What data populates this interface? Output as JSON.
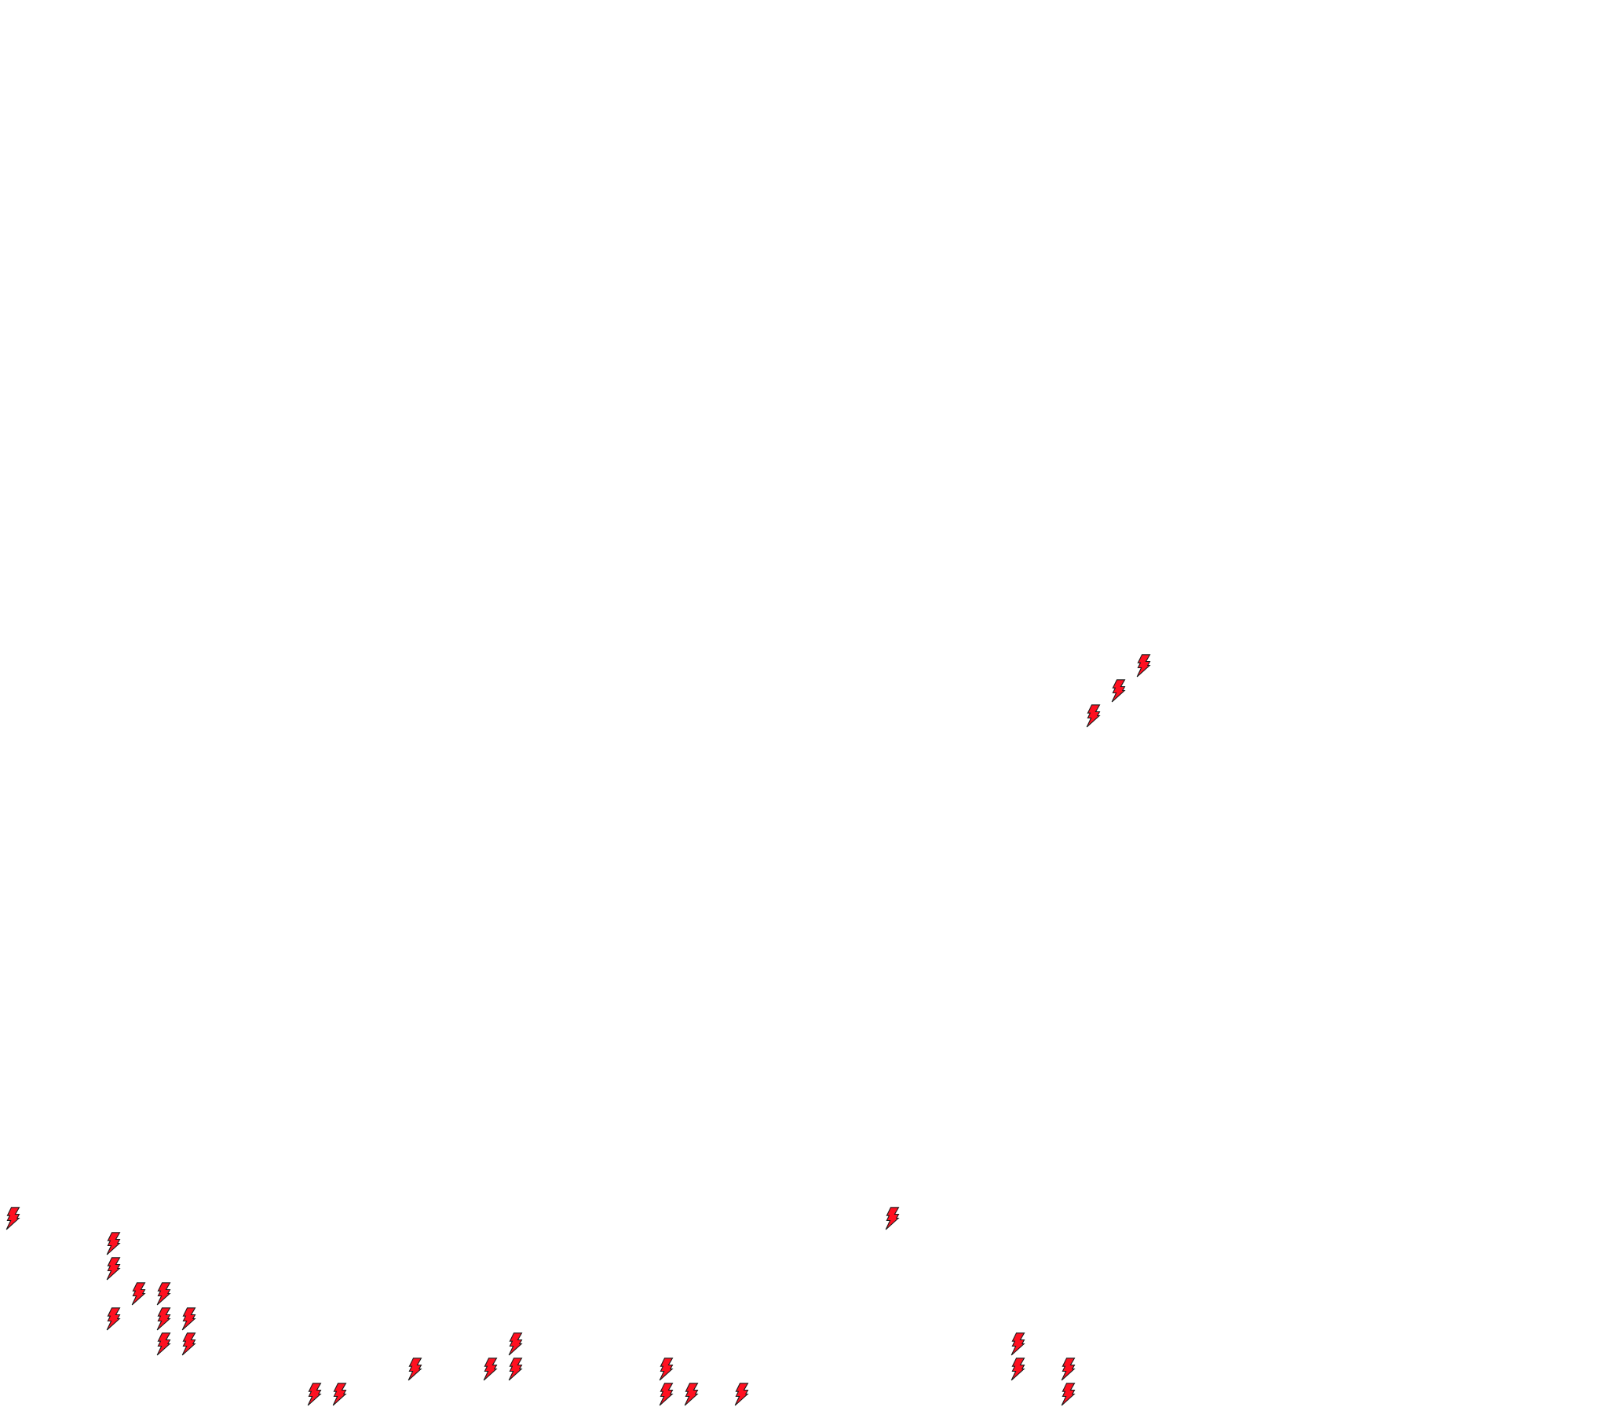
{
  "board": {
    "background": "#ffffff",
    "tile_icon": "lightning-bolt-icon",
    "bolt_fill": "#ff1020",
    "bolt_stroke": "#1a1a1a",
    "bolts": [
      {
        "col": 45,
        "row": 26
      },
      {
        "col": 44,
        "row": 27
      },
      {
        "col": 43,
        "row": 28
      },
      {
        "col": 0,
        "row": 48
      },
      {
        "col": 35,
        "row": 48
      },
      {
        "col": 4,
        "row": 49
      },
      {
        "col": 4,
        "row": 50
      },
      {
        "col": 5,
        "row": 51
      },
      {
        "col": 6,
        "row": 51
      },
      {
        "col": 4,
        "row": 52
      },
      {
        "col": 6,
        "row": 52
      },
      {
        "col": 7,
        "row": 52
      },
      {
        "col": 6,
        "row": 53
      },
      {
        "col": 7,
        "row": 53
      },
      {
        "col": 20,
        "row": 53
      },
      {
        "col": 40,
        "row": 53
      },
      {
        "col": 16,
        "row": 54
      },
      {
        "col": 19,
        "row": 54
      },
      {
        "col": 20,
        "row": 54
      },
      {
        "col": 26,
        "row": 54
      },
      {
        "col": 40,
        "row": 54
      },
      {
        "col": 42,
        "row": 54
      },
      {
        "col": 12,
        "row": 55
      },
      {
        "col": 13,
        "row": 55
      },
      {
        "col": 26,
        "row": 55
      },
      {
        "col": 27,
        "row": 55
      },
      {
        "col": 29,
        "row": 55
      },
      {
        "col": 42,
        "row": 55
      }
    ]
  }
}
